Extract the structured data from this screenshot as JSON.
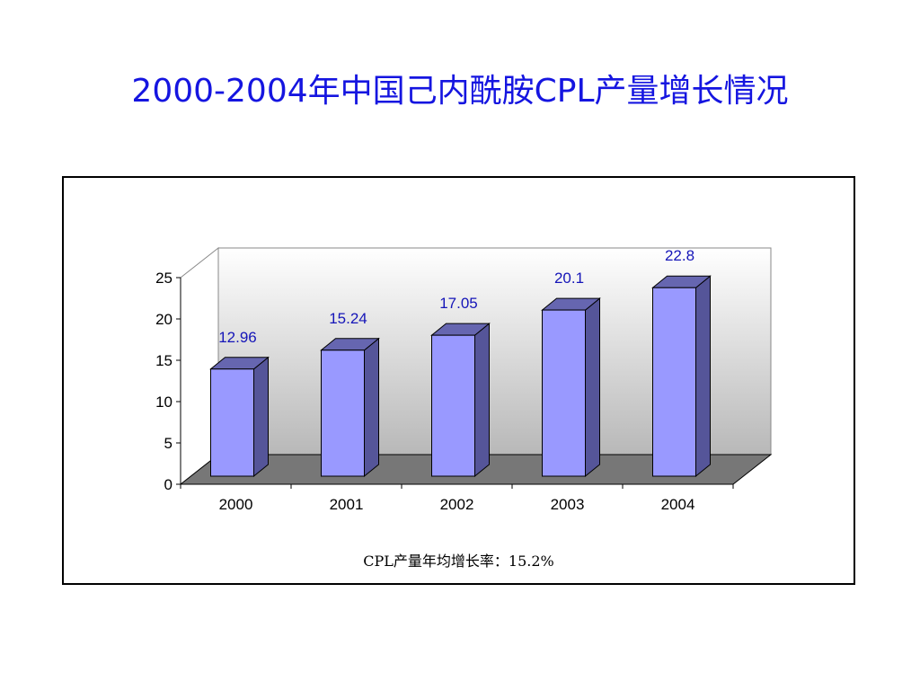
{
  "title": "2000-2004年中国己内酰胺CPL产量增长情况",
  "footnote": "CPL产量年均增长率：15.2%",
  "colors": {
    "title": "#1515e0",
    "bar_front": "#9999ff",
    "bar_side": "#555599",
    "bar_top": "#6666b0",
    "floor": "#777777",
    "data_label": "#1515b8"
  },
  "chart_data": {
    "type": "bar",
    "categories": [
      "2000",
      "2001",
      "2002",
      "2003",
      "2004"
    ],
    "values": [
      12.96,
      15.24,
      17.05,
      20.1,
      22.8
    ],
    "data_labels": [
      "12.96",
      "15.24",
      "17.05",
      "20.1",
      "22.8"
    ],
    "yticks": [
      0,
      5,
      10,
      15,
      20,
      25
    ],
    "ylim": [
      0,
      25
    ],
    "title": "",
    "xlabel": "",
    "ylabel": "",
    "style": "3d",
    "grid": false,
    "legend": "none"
  }
}
